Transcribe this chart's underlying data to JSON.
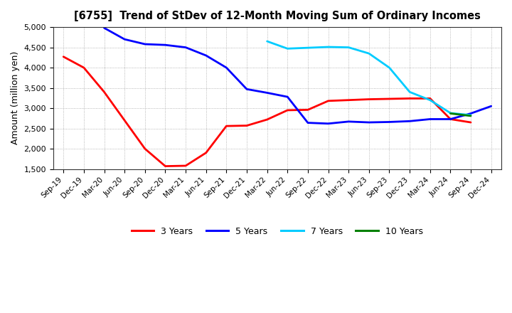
{
  "title": "[6755]  Trend of StDev of 12-Month Moving Sum of Ordinary Incomes",
  "ylabel": "Amount (million yen)",
  "ylim": [
    1500,
    5000
  ],
  "yticks": [
    1500,
    2000,
    2500,
    3000,
    3500,
    4000,
    4500,
    5000
  ],
  "background_color": "#ffffff",
  "plot_bg_color": "#ffffff",
  "grid_color": "#999999",
  "x_labels": [
    "Sep-19",
    "Dec-19",
    "Mar-20",
    "Jun-20",
    "Sep-20",
    "Dec-20",
    "Mar-21",
    "Jun-21",
    "Sep-21",
    "Dec-21",
    "Mar-22",
    "Jun-22",
    "Sep-22",
    "Dec-22",
    "Mar-23",
    "Jun-23",
    "Sep-23",
    "Dec-23",
    "Mar-24",
    "Jun-24",
    "Sep-24",
    "Dec-24"
  ],
  "series": {
    "3 Years": {
      "color": "#ff0000",
      "data": [
        [
          "Sep-19",
          4270
        ],
        [
          "Dec-19",
          4000
        ],
        [
          "Mar-20",
          3400
        ],
        [
          "Jun-20",
          2700
        ],
        [
          "Sep-20",
          2000
        ],
        [
          "Dec-20",
          1570
        ],
        [
          "Mar-21",
          1580
        ],
        [
          "Jun-21",
          1900
        ],
        [
          "Sep-21",
          2560
        ],
        [
          "Dec-21",
          2570
        ],
        [
          "Mar-22",
          2720
        ],
        [
          "Jun-22",
          2950
        ],
        [
          "Sep-22",
          2960
        ],
        [
          "Dec-22",
          3180
        ],
        [
          "Mar-23",
          3200
        ],
        [
          "Jun-23",
          3220
        ],
        [
          "Sep-23",
          3230
        ],
        [
          "Dec-23",
          3240
        ],
        [
          "Mar-24",
          3240
        ],
        [
          "Jun-24",
          2730
        ],
        [
          "Sep-24",
          2650
        ],
        [
          "Dec-24",
          null
        ]
      ]
    },
    "5 Years": {
      "color": "#0000ff",
      "data": [
        [
          "Sep-19",
          null
        ],
        [
          "Dec-19",
          null
        ],
        [
          "Mar-20",
          4980
        ],
        [
          "Jun-20",
          4700
        ],
        [
          "Sep-20",
          4580
        ],
        [
          "Dec-20",
          4560
        ],
        [
          "Mar-21",
          4500
        ],
        [
          "Jun-21",
          4300
        ],
        [
          "Sep-21",
          4000
        ],
        [
          "Dec-21",
          3470
        ],
        [
          "Mar-22",
          3380
        ],
        [
          "Jun-22",
          3280
        ],
        [
          "Sep-22",
          2640
        ],
        [
          "Dec-22",
          2620
        ],
        [
          "Mar-23",
          2670
        ],
        [
          "Jun-23",
          2650
        ],
        [
          "Sep-23",
          2660
        ],
        [
          "Dec-23",
          2680
        ],
        [
          "Mar-24",
          2730
        ],
        [
          "Jun-24",
          2730
        ],
        [
          "Sep-24",
          2870
        ],
        [
          "Dec-24",
          3050
        ]
      ]
    },
    "7 Years": {
      "color": "#00ccff",
      "data": [
        [
          "Sep-19",
          null
        ],
        [
          "Dec-19",
          null
        ],
        [
          "Mar-20",
          null
        ],
        [
          "Jun-20",
          null
        ],
        [
          "Sep-20",
          null
        ],
        [
          "Dec-20",
          null
        ],
        [
          "Mar-21",
          null
        ],
        [
          "Jun-21",
          null
        ],
        [
          "Sep-21",
          null
        ],
        [
          "Dec-21",
          null
        ],
        [
          "Mar-22",
          4650
        ],
        [
          "Jun-22",
          4470
        ],
        [
          "Sep-22",
          4490
        ],
        [
          "Dec-22",
          4510
        ],
        [
          "Mar-23",
          4500
        ],
        [
          "Jun-23",
          4350
        ],
        [
          "Sep-23",
          4000
        ],
        [
          "Dec-23",
          3400
        ],
        [
          "Mar-24",
          3200
        ],
        [
          "Jun-24",
          2880
        ],
        [
          "Sep-24",
          2830
        ],
        [
          "Dec-24",
          null
        ]
      ]
    },
    "10 Years": {
      "color": "#008000",
      "data": [
        [
          "Sep-19",
          null
        ],
        [
          "Dec-19",
          null
        ],
        [
          "Mar-20",
          null
        ],
        [
          "Jun-20",
          null
        ],
        [
          "Sep-20",
          null
        ],
        [
          "Dec-20",
          null
        ],
        [
          "Mar-21",
          null
        ],
        [
          "Jun-21",
          null
        ],
        [
          "Sep-21",
          null
        ],
        [
          "Dec-21",
          null
        ],
        [
          "Mar-22",
          null
        ],
        [
          "Jun-22",
          null
        ],
        [
          "Sep-22",
          null
        ],
        [
          "Dec-22",
          null
        ],
        [
          "Mar-23",
          null
        ],
        [
          "Jun-23",
          null
        ],
        [
          "Sep-23",
          null
        ],
        [
          "Dec-23",
          null
        ],
        [
          "Mar-24",
          null
        ],
        [
          "Jun-24",
          2870
        ],
        [
          "Sep-24",
          2810
        ],
        [
          "Dec-24",
          null
        ]
      ]
    }
  },
  "legend_order": [
    "3 Years",
    "5 Years",
    "7 Years",
    "10 Years"
  ]
}
